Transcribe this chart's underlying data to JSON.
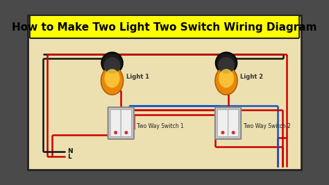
{
  "title": "How to Make Two Light Two Switch Wiring Diagram",
  "title_fontsize": 11,
  "title_color": "#000000",
  "title_bg": "#FFFF00",
  "bg_color": "#EDE0B0",
  "border_color": "#222222",
  "outer_bg": "#4a4a4a",
  "light1_label": "Light 1",
  "light2_label": "Light 2",
  "switch1_label": "Two Way Switch 1",
  "switch2_label": "Two Way Switch 2",
  "wire_black": "#111111",
  "wire_red": "#CC0000",
  "wire_blue": "#1155CC",
  "wire_lw": 1.8
}
